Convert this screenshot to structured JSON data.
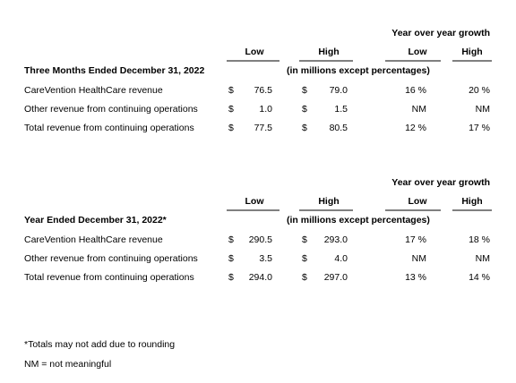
{
  "tables": [
    {
      "growth_header": "Year over year growth",
      "columns": [
        "Low",
        "High",
        "Low",
        "High"
      ],
      "period": "Three Months Ended December 31, 2022",
      "units": "(in millions except percentages)",
      "rows": [
        {
          "label": "CareVention HealthCare revenue",
          "low_currency": "$",
          "low": "76.5",
          "high_currency": "$",
          "high": "79.0",
          "growth_low": "16 %",
          "growth_high": "20 %"
        },
        {
          "label": "Other revenue from continuing operations",
          "low_currency": "$",
          "low": "1.0",
          "high_currency": "$",
          "high": "1.5",
          "growth_low": "NM",
          "growth_high": "NM"
        },
        {
          "label": "Total revenue from continuing operations",
          "low_currency": "$",
          "low": "77.5",
          "high_currency": "$",
          "high": "80.5",
          "growth_low": "12 %",
          "growth_high": "17 %"
        }
      ]
    },
    {
      "growth_header": "Year over year growth",
      "columns": [
        "Low",
        "High",
        "Low",
        "High"
      ],
      "period": "Year Ended December 31, 2022*",
      "units": "(in millions except percentages)",
      "rows": [
        {
          "label": "CareVention HealthCare revenue",
          "low_currency": "$",
          "low": "290.5",
          "high_currency": "$",
          "high": "293.0",
          "growth_low": "17 %",
          "growth_high": "18 %"
        },
        {
          "label": "Other revenue from continuing operations",
          "low_currency": "$",
          "low": "3.5",
          "high_currency": "$",
          "high": "4.0",
          "growth_low": "NM",
          "growth_high": "NM"
        },
        {
          "label": "Total revenue from continuing operations",
          "low_currency": "$",
          "low": "294.0",
          "high_currency": "$",
          "high": "297.0",
          "growth_low": "13 %",
          "growth_high": "14 %"
        }
      ]
    }
  ],
  "footnotes": [
    "*Totals may not add due to rounding",
    "NM = not meaningful"
  ]
}
